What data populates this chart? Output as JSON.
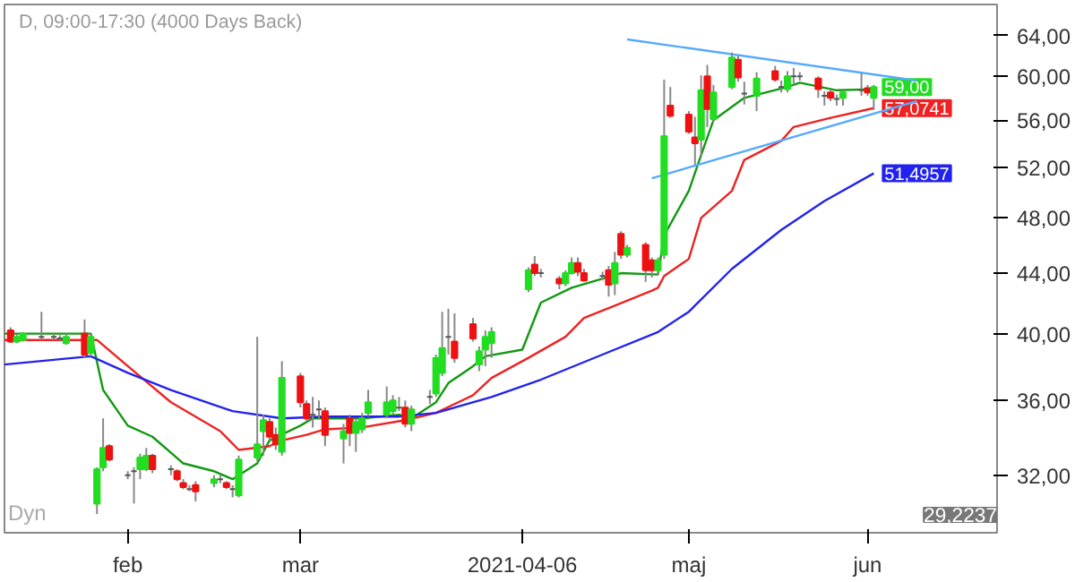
{
  "chart_data": {
    "type": "candlestick",
    "title": "D, 09:00-17:30 (4000 Days Back)",
    "log": "y",
    "ylim": [
      29.2237,
      67.2
    ],
    "xlim": [
      "2021-01-12",
      "2021-06-22"
    ],
    "yticks": [
      {
        "value": 32,
        "label": "32,00"
      },
      {
        "value": 36,
        "label": "36,00"
      },
      {
        "value": 40,
        "label": "40,00"
      },
      {
        "value": 44,
        "label": "44,00"
      },
      {
        "value": 48,
        "label": "48,00"
      },
      {
        "value": 52,
        "label": "52,00"
      },
      {
        "value": 56,
        "label": "56,00"
      },
      {
        "value": 60,
        "label": "60,00"
      },
      {
        "value": 64,
        "label": "64,00"
      }
    ],
    "xticks": [
      {
        "value": "2021-02-01",
        "label": "feb"
      },
      {
        "value": "2021-03-01",
        "label": "mar"
      },
      {
        "value": "2021-04-06",
        "label": "2021-04-06"
      },
      {
        "value": "2021-05-03",
        "label": "maj"
      },
      {
        "value": "2021-06-01",
        "label": "jun"
      }
    ],
    "x": [
      "2021-01-13",
      "2021-01-14",
      "2021-01-15",
      "2021-01-18",
      "2021-01-20",
      "2021-01-21",
      "2021-01-22",
      "2021-01-25",
      "2021-01-26",
      "2021-01-27",
      "2021-01-28",
      "2021-01-29",
      "2021-02-01",
      "2021-02-02",
      "2021-02-03",
      "2021-02-04",
      "2021-02-05",
      "2021-02-08",
      "2021-02-09",
      "2021-02-10",
      "2021-02-11",
      "2021-02-12",
      "2021-02-15",
      "2021-02-16",
      "2021-02-17",
      "2021-02-18",
      "2021-02-19",
      "2021-02-22",
      "2021-02-23",
      "2021-02-24",
      "2021-02-25",
      "2021-02-26",
      "2021-03-01",
      "2021-03-02",
      "2021-03-03",
      "2021-03-04",
      "2021-03-05",
      "2021-03-08",
      "2021-03-09",
      "2021-03-10",
      "2021-03-11",
      "2021-03-12",
      "2021-03-15",
      "2021-03-16",
      "2021-03-17",
      "2021-03-18",
      "2021-03-19",
      "2021-03-22",
      "2021-03-23",
      "2021-03-24",
      "2021-03-25",
      "2021-03-26",
      "2021-03-29",
      "2021-03-30",
      "2021-03-31",
      "2021-04-01",
      "2021-04-07",
      "2021-04-08",
      "2021-04-09",
      "2021-04-12",
      "2021-04-13",
      "2021-04-14",
      "2021-04-15",
      "2021-04-16",
      "2021-04-19",
      "2021-04-20",
      "2021-04-21",
      "2021-04-22",
      "2021-04-23",
      "2021-04-26",
      "2021-04-27",
      "2021-04-28",
      "2021-04-29",
      "2021-04-30",
      "2021-05-03",
      "2021-05-04",
      "2021-05-05",
      "2021-05-06",
      "2021-05-07",
      "2021-05-10",
      "2021-05-11",
      "2021-05-12",
      "2021-05-14",
      "2021-05-17",
      "2021-05-18",
      "2021-05-19",
      "2021-05-20",
      "2021-05-21",
      "2021-05-24",
      "2021-05-25",
      "2021-05-26",
      "2021-05-27",
      "2021-05-28",
      "2021-05-31",
      "2021-06-01",
      "2021-06-02"
    ],
    "ohlc": [
      [
        40.2,
        40.4,
        39.4,
        39.5
      ],
      [
        39.5,
        40.0,
        39.4,
        39.8
      ],
      [
        39.6,
        40.1,
        39.5,
        40.0
      ],
      [
        39.8,
        41.4,
        39.6,
        39.8
      ],
      [
        39.8,
        40.0,
        39.6,
        39.8
      ],
      [
        39.7,
        39.9,
        39.5,
        39.7
      ],
      [
        39.4,
        40.0,
        39.3,
        39.8
      ],
      [
        40.0,
        40.9,
        38.5,
        38.7
      ],
      [
        38.8,
        40.0,
        38.6,
        39.8
      ],
      [
        30.6,
        32.4,
        30.1,
        32.3
      ],
      [
        32.4,
        35.0,
        32.2,
        33.4
      ],
      [
        33.5,
        33.6,
        32.7,
        32.8
      ],
      [
        32.0,
        32.2,
        31.8,
        32.0
      ],
      [
        32.2,
        32.4,
        30.6,
        32.2
      ],
      [
        32.3,
        33.1,
        31.8,
        32.9
      ],
      [
        32.3,
        33.4,
        32.2,
        33.0
      ],
      [
        33.0,
        33.1,
        32.1,
        32.3
      ],
      [
        32.3,
        32.5,
        32.0,
        32.3
      ],
      [
        32.2,
        32.3,
        31.7,
        31.8
      ],
      [
        31.6,
        31.8,
        31.3,
        31.4
      ],
      [
        31.3,
        31.5,
        31.2,
        31.3
      ],
      [
        31.5,
        31.7,
        30.7,
        31.2
      ],
      [
        31.6,
        32.0,
        31.4,
        31.8
      ],
      [
        31.8,
        32.0,
        31.6,
        31.8
      ],
      [
        31.6,
        31.7,
        31.3,
        31.4
      ],
      [
        31.3,
        31.5,
        30.9,
        31.3
      ],
      [
        31.0,
        33.0,
        30.9,
        32.8
      ],
      [
        32.9,
        39.8,
        32.7,
        33.6
      ],
      [
        34.3,
        35.2,
        33.0,
        34.9
      ],
      [
        34.8,
        35.0,
        33.8,
        34.0
      ],
      [
        34.1,
        34.5,
        33.3,
        33.6
      ],
      [
        33.2,
        38.3,
        33.0,
        37.3
      ],
      [
        37.4,
        37.6,
        35.6,
        35.9
      ],
      [
        35.8,
        36.0,
        34.8,
        35.0
      ],
      [
        35.2,
        36.2,
        34.5,
        35.2
      ],
      [
        35.5,
        36.0,
        35.0,
        35.5
      ],
      [
        35.4,
        35.6,
        33.5,
        34.1
      ],
      [
        33.9,
        34.7,
        32.6,
        34.3
      ],
      [
        35.0,
        35.2,
        33.5,
        34.2
      ],
      [
        34.2,
        35.0,
        33.2,
        34.8
      ],
      [
        34.4,
        35.3,
        34.2,
        35.0
      ],
      [
        35.3,
        36.6,
        35.1,
        35.9
      ],
      [
        35.2,
        36.8,
        35.0,
        35.9
      ],
      [
        35.4,
        36.3,
        35.2,
        36.0
      ],
      [
        35.6,
        36.2,
        35.4,
        35.6
      ],
      [
        35.6,
        36.0,
        34.5,
        34.7
      ],
      [
        34.7,
        35.7,
        34.3,
        35.5
      ],
      [
        36.2,
        36.6,
        35.8,
        36.2
      ],
      [
        36.4,
        38.7,
        36.2,
        38.5
      ],
      [
        37.6,
        41.4,
        37.4,
        39.1
      ],
      [
        39.8,
        41.6,
        38.7,
        39.8
      ],
      [
        39.5,
        41.3,
        38.2,
        38.5
      ],
      [
        40.6,
        41.0,
        39.5,
        39.7
      ],
      [
        38.1,
        39.2,
        37.7,
        38.9
      ],
      [
        39.0,
        40.2,
        38.0,
        39.8
      ],
      [
        39.4,
        40.4,
        38.5,
        40.1
      ],
      [
        42.9,
        44.4,
        42.7,
        44.2
      ],
      [
        44.6,
        45.2,
        43.8,
        44.0
      ],
      [
        44.0,
        44.3,
        43.7,
        44.0
      ],
      [
        43.6,
        43.8,
        42.9,
        43.3
      ],
      [
        43.3,
        44.2,
        43.1,
        44.0
      ],
      [
        44.0,
        45.1,
        43.9,
        44.7
      ],
      [
        44.7,
        45.1,
        43.8,
        44.1
      ],
      [
        44.0,
        44.3,
        43.4,
        43.5
      ],
      [
        43.8,
        44.1,
        43.5,
        43.8
      ],
      [
        44.2,
        44.5,
        42.4,
        43.2
      ],
      [
        43.3,
        45.5,
        42.5,
        44.7
      ],
      [
        46.8,
        47.0,
        45.0,
        45.3
      ],
      [
        45.3,
        46.0,
        45.1,
        45.8
      ],
      [
        46.0,
        46.2,
        43.4,
        44.2
      ],
      [
        44.9,
        45.1,
        43.7,
        44.2
      ],
      [
        44.2,
        45.1,
        43.9,
        44.9
      ],
      [
        45.3,
        59.7,
        45.0,
        54.6
      ],
      [
        57.3,
        59.0,
        56.2,
        56.4
      ],
      [
        56.5,
        56.8,
        54.8,
        55.0
      ],
      [
        54.5,
        56.3,
        52.2,
        54.0
      ],
      [
        54.3,
        60.1,
        52.8,
        58.7
      ],
      [
        60.0,
        61.1,
        55.4,
        57.0
      ],
      [
        56.1,
        59.2,
        55.8,
        58.5
      ],
      [
        59.0,
        62.3,
        58.8,
        61.8
      ],
      [
        61.6,
        62.0,
        59.5,
        59.9
      ],
      [
        58.4,
        59.5,
        57.4,
        58.4
      ],
      [
        58.2,
        60.4,
        56.8,
        59.8
      ],
      [
        60.5,
        61.0,
        59.5,
        59.7
      ],
      [
        59.0,
        59.6,
        58.5,
        59.0
      ],
      [
        58.8,
        60.5,
        58.5,
        60.0
      ],
      [
        60.0,
        60.8,
        59.2,
        60.0
      ],
      [
        60.0,
        60.4,
        59.6,
        60.0
      ],
      [
        59.8,
        60.0,
        58.0,
        58.8
      ],
      [
        58.2,
        58.6,
        57.3,
        58.2
      ],
      [
        58.5,
        58.8,
        57.7,
        58.0
      ],
      [
        57.9,
        58.3,
        57.3,
        57.9
      ],
      [
        58.0,
        58.7,
        57.3,
        58.5
      ],
      [
        58.7,
        60.3,
        58.2,
        58.7
      ],
      [
        58.9,
        59.2,
        58.2,
        58.5
      ],
      [
        58.0,
        59.2,
        56.9,
        59.0
      ]
    ],
    "colors": [
      "#ee1111",
      "#22dd22",
      "#22dd22",
      "#555555",
      "#555555",
      "#555555",
      "#22dd22",
      "#ee1111",
      "#22dd22",
      "#22dd22",
      "#22dd22",
      "#ee1111",
      "#555555",
      "#555555",
      "#22dd22",
      "#22dd22",
      "#ee1111",
      "#555555",
      "#ee1111",
      "#ee1111",
      "#555555",
      "#ee1111",
      "#22dd22",
      "#555555",
      "#ee1111",
      "#555555",
      "#22dd22",
      "#22dd22",
      "#22dd22",
      "#ee1111",
      "#ee1111",
      "#22dd22",
      "#ee1111",
      "#ee1111",
      "#555555",
      "#555555",
      "#ee1111",
      "#22dd22",
      "#ee1111",
      "#22dd22",
      "#22dd22",
      "#22dd22",
      "#22dd22",
      "#22dd22",
      "#555555",
      "#ee1111",
      "#22dd22",
      "#555555",
      "#22dd22",
      "#22dd22",
      "#555555",
      "#ee1111",
      "#ee1111",
      "#22dd22",
      "#22dd22",
      "#22dd22",
      "#22dd22",
      "#ee1111",
      "#555555",
      "#ee1111",
      "#22dd22",
      "#22dd22",
      "#ee1111",
      "#ee1111",
      "#555555",
      "#ee1111",
      "#22dd22",
      "#ee1111",
      "#22dd22",
      "#ee1111",
      "#ee1111",
      "#22dd22",
      "#22dd22",
      "#ee1111",
      "#ee1111",
      "#ee1111",
      "#22dd22",
      "#ee1111",
      "#22dd22",
      "#22dd22",
      "#ee1111",
      "#555555",
      "#22dd22",
      "#ee1111",
      "#555555",
      "#22dd22",
      "#555555",
      "#555555",
      "#ee1111",
      "#555555",
      "#ee1111",
      "#555555",
      "#22dd22",
      "#555555",
      "#ee1111",
      "#22dd22"
    ],
    "value_labels": [
      null,
      null,
      null,
      null,
      null,
      null,
      null,
      null,
      null,
      null,
      null,
      null,
      null,
      null,
      null,
      null,
      null,
      null,
      null,
      null,
      null,
      null,
      null,
      null,
      null,
      null,
      null,
      null,
      null,
      null,
      null,
      null,
      null,
      null,
      null,
      null,
      null,
      null,
      null,
      null,
      null,
      null,
      null,
      null,
      null,
      null,
      null,
      null,
      null,
      null,
      null,
      null,
      null,
      null,
      null,
      null,
      null,
      null,
      null,
      null,
      null,
      null,
      null,
      null,
      null,
      null,
      null,
      null,
      null,
      null,
      null,
      null,
      null,
      null,
      null,
      null,
      null,
      null,
      null,
      null,
      null,
      null,
      null,
      null,
      null,
      null,
      null,
      null,
      null,
      null,
      null,
      null,
      null,
      null,
      null,
      "59,00"
    ],
    "series": [
      {
        "type": "line",
        "color": "#119911",
        "x": [
          "2021-01-12",
          "2021-01-26",
          "2021-01-28",
          "2021-02-01",
          "2021-02-05",
          "2021-02-10",
          "2021-02-15",
          "2021-02-18",
          "2021-02-22",
          "2021-02-24",
          "2021-03-01",
          "2021-03-03",
          "2021-03-11",
          "2021-03-17",
          "2021-03-19",
          "2021-03-23",
          "2021-03-25",
          "2021-03-29",
          "2021-03-31",
          "2021-04-06",
          "2021-04-09",
          "2021-04-14",
          "2021-04-22",
          "2021-04-28",
          "2021-04-29",
          "2021-05-03",
          "2021-05-05",
          "2021-05-07",
          "2021-05-12",
          "2021-05-19",
          "2021-05-21",
          "2021-05-27",
          "2021-06-02"
        ],
        "values": [
          40.0,
          40.0,
          36.6,
          34.6,
          34.0,
          32.6,
          32.2,
          31.8,
          32.6,
          33.8,
          34.6,
          35.0,
          35.0,
          35.2,
          35.0,
          35.9,
          37.0,
          38.0,
          38.6,
          39.0,
          42.0,
          43.0,
          44.0,
          43.9,
          46.7,
          50.1,
          53.0,
          56.0,
          58.0,
          59.0,
          59.4,
          58.7,
          58.8
        ]
      },
      {
        "type": "line",
        "color": "#ee2222",
        "x": [
          "2021-01-12",
          "2021-01-27",
          "2021-02-01",
          "2021-02-08",
          "2021-02-16",
          "2021-02-19",
          "2021-02-24",
          "2021-02-26",
          "2021-03-02",
          "2021-03-05",
          "2021-03-11",
          "2021-03-18",
          "2021-03-23",
          "2021-03-29",
          "2021-04-01",
          "2021-04-07",
          "2021-04-13",
          "2021-04-16",
          "2021-04-21",
          "2021-04-27",
          "2021-04-28",
          "2021-04-29",
          "2021-05-03",
          "2021-05-05",
          "2021-05-10",
          "2021-05-12",
          "2021-05-18",
          "2021-05-20",
          "2021-05-26",
          "2021-06-02"
        ],
        "values": [
          39.6,
          39.6,
          38.0,
          35.9,
          34.3,
          33.3,
          33.5,
          33.8,
          34.1,
          34.4,
          34.5,
          34.9,
          35.3,
          36.3,
          37.3,
          38.5,
          39.8,
          41.0,
          41.8,
          42.8,
          43.0,
          43.8,
          45.0,
          48.0,
          50.1,
          52.6,
          54.2,
          55.4,
          56.2,
          57.0741
        ],
        "value_labels": [
          null,
          null,
          null,
          null,
          null,
          null,
          null,
          null,
          null,
          null,
          null,
          null,
          null,
          null,
          null,
          null,
          null,
          null,
          null,
          null,
          null,
          null,
          null,
          null,
          null,
          null,
          null,
          null,
          null,
          "57,0741"
        ]
      },
      {
        "type": "line",
        "color": "#2222ee",
        "x": [
          "2021-01-12",
          "2021-01-26",
          "2021-02-01",
          "2021-02-08",
          "2021-02-18",
          "2021-02-26",
          "2021-03-05",
          "2021-03-17",
          "2021-03-23",
          "2021-04-01",
          "2021-04-09",
          "2021-04-19",
          "2021-04-28",
          "2021-05-03",
          "2021-05-10",
          "2021-05-18",
          "2021-05-25",
          "2021-06-02"
        ],
        "values": [
          38.1,
          38.6,
          37.6,
          36.6,
          35.4,
          35.0,
          35.1,
          35.1,
          35.3,
          36.2,
          37.2,
          38.7,
          40.1,
          41.4,
          44.3,
          47.1,
          49.3,
          51.4957
        ],
        "value_labels": [
          null,
          null,
          null,
          null,
          null,
          null,
          null,
          null,
          null,
          null,
          null,
          null,
          null,
          null,
          null,
          null,
          null,
          "51,4957"
        ]
      },
      {
        "type": "line",
        "color": "#55aaff",
        "x": [
          "2021-04-23",
          "2021-06-09"
        ],
        "values": [
          63.6,
          59.6
        ]
      },
      {
        "type": "line",
        "color": "#55aaff",
        "x": [
          "2021-04-27",
          "2021-06-09"
        ],
        "values": [
          51.1,
          57.7
        ]
      }
    ],
    "annotations": [
      "Dyn",
      "29,2237"
    ]
  }
}
